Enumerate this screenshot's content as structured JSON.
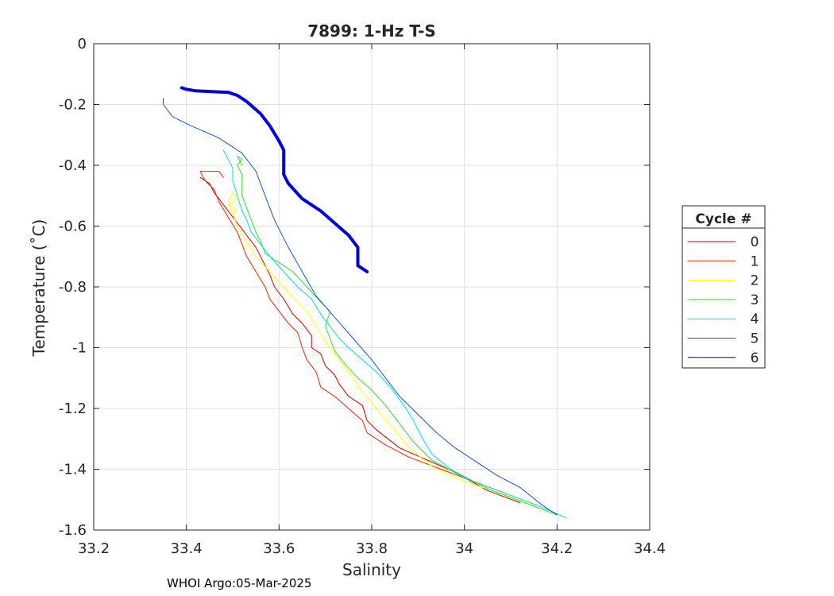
{
  "chart_data": {
    "type": "line",
    "title": "7899: 1-Hz T-S",
    "xlabel": "Salinity",
    "ylabel": "Temperature (˚C)",
    "xlim": [
      33.2,
      34.4
    ],
    "ylim": [
      -1.6,
      0
    ],
    "xticks": [
      "33.2",
      "33.4",
      "33.6",
      "33.8",
      "34",
      "34.2",
      "34.4"
    ],
    "yticks": [
      "0",
      "-0.2",
      "-0.4",
      "-0.6",
      "-0.8",
      "-1",
      "-1.2",
      "-1.4",
      "-1.6"
    ],
    "grid": true,
    "legend": {
      "title": "Cycle #",
      "placement": "outside-right"
    },
    "series": [
      {
        "name": "0",
        "color": "#cc0000",
        "points": [
          [
            34.12,
            -1.51
          ],
          [
            34.05,
            -1.47
          ],
          [
            33.98,
            -1.41
          ],
          [
            33.92,
            -1.37
          ],
          [
            33.86,
            -1.33
          ],
          [
            33.81,
            -1.27
          ],
          [
            33.79,
            -1.24
          ],
          [
            33.78,
            -1.19
          ],
          [
            33.75,
            -1.16
          ],
          [
            33.73,
            -1.12
          ],
          [
            33.72,
            -1.09
          ],
          [
            33.7,
            -1.06
          ],
          [
            33.69,
            -1.02
          ],
          [
            33.67,
            -1.0
          ],
          [
            33.67,
            -0.96
          ],
          [
            33.65,
            -0.92
          ],
          [
            33.63,
            -0.89
          ],
          [
            33.61,
            -0.84
          ],
          [
            33.59,
            -0.8
          ],
          [
            33.58,
            -0.76
          ],
          [
            33.57,
            -0.73
          ],
          [
            33.56,
            -0.7
          ],
          [
            33.55,
            -0.67
          ],
          [
            33.54,
            -0.65
          ],
          [
            33.53,
            -0.63
          ],
          [
            33.5,
            -0.57
          ],
          [
            33.48,
            -0.53
          ],
          [
            33.46,
            -0.49
          ],
          [
            33.45,
            -0.46
          ],
          [
            33.43,
            -0.44
          ]
        ]
      },
      {
        "name": "1",
        "color": "#ee2200",
        "points": [
          [
            34.09,
            -1.48
          ],
          [
            34.02,
            -1.44
          ],
          [
            33.95,
            -1.4
          ],
          [
            33.88,
            -1.36
          ],
          [
            33.83,
            -1.32
          ],
          [
            33.79,
            -1.28
          ],
          [
            33.78,
            -1.24
          ],
          [
            33.75,
            -1.2
          ],
          [
            33.72,
            -1.16
          ],
          [
            33.69,
            -1.13
          ],
          [
            33.68,
            -1.08
          ],
          [
            33.66,
            -1.04
          ],
          [
            33.65,
            -1.0
          ],
          [
            33.64,
            -0.95
          ],
          [
            33.62,
            -0.92
          ],
          [
            33.6,
            -0.88
          ],
          [
            33.58,
            -0.84
          ],
          [
            33.57,
            -0.8
          ],
          [
            33.55,
            -0.75
          ],
          [
            33.53,
            -0.7
          ],
          [
            33.52,
            -0.66
          ],
          [
            33.51,
            -0.62
          ],
          [
            33.49,
            -0.57
          ],
          [
            33.47,
            -0.52
          ],
          [
            33.46,
            -0.48
          ],
          [
            33.44,
            -0.45
          ],
          [
            33.43,
            -0.42
          ],
          [
            33.47,
            -0.42
          ],
          [
            33.48,
            -0.44
          ]
        ]
      },
      {
        "name": "2",
        "color": "#ffff00",
        "points": [
          [
            34.15,
            -1.52
          ],
          [
            34.08,
            -1.48
          ],
          [
            34.0,
            -1.44
          ],
          [
            33.93,
            -1.39
          ],
          [
            33.88,
            -1.33
          ],
          [
            33.85,
            -1.27
          ],
          [
            33.82,
            -1.22
          ],
          [
            33.8,
            -1.18
          ],
          [
            33.78,
            -1.15
          ],
          [
            33.76,
            -1.1
          ],
          [
            33.74,
            -1.06
          ],
          [
            33.72,
            -1.02
          ],
          [
            33.7,
            -0.98
          ],
          [
            33.68,
            -0.93
          ],
          [
            33.66,
            -0.88
          ],
          [
            33.64,
            -0.85
          ],
          [
            33.61,
            -0.8
          ],
          [
            33.58,
            -0.75
          ],
          [
            33.55,
            -0.7
          ],
          [
            33.53,
            -0.65
          ],
          [
            33.51,
            -0.6
          ],
          [
            33.5,
            -0.56
          ],
          [
            33.49,
            -0.52
          ],
          [
            33.5,
            -0.49
          ],
          [
            33.51,
            -0.51
          ],
          [
            33.49,
            -0.53
          ],
          [
            33.51,
            -0.55
          ]
        ]
      },
      {
        "name": "3",
        "color": "#33dd33",
        "points": [
          [
            34.2,
            -1.55
          ],
          [
            34.13,
            -1.51
          ],
          [
            34.06,
            -1.47
          ],
          [
            33.99,
            -1.42
          ],
          [
            33.93,
            -1.37
          ],
          [
            33.89,
            -1.31
          ],
          [
            33.86,
            -1.25
          ],
          [
            33.83,
            -1.19
          ],
          [
            33.8,
            -1.14
          ],
          [
            33.77,
            -1.1
          ],
          [
            33.74,
            -1.05
          ],
          [
            33.72,
            -1.01
          ],
          [
            33.71,
            -0.97
          ],
          [
            33.7,
            -0.93
          ],
          [
            33.71,
            -0.88
          ],
          [
            33.69,
            -0.85
          ],
          [
            33.66,
            -0.8
          ],
          [
            33.63,
            -0.75
          ],
          [
            33.6,
            -0.72
          ],
          [
            33.57,
            -0.69
          ],
          [
            33.56,
            -0.65
          ],
          [
            33.55,
            -0.62
          ],
          [
            33.54,
            -0.58
          ],
          [
            33.53,
            -0.54
          ],
          [
            33.52,
            -0.5
          ],
          [
            33.52,
            -0.46
          ],
          [
            33.52,
            -0.43
          ],
          [
            33.51,
            -0.4
          ],
          [
            33.52,
            -0.38
          ],
          [
            33.51,
            -0.37
          ],
          [
            33.52,
            -0.4
          ]
        ]
      },
      {
        "name": "4",
        "color": "#00e0d0",
        "points": [
          [
            34.22,
            -1.56
          ],
          [
            34.16,
            -1.52
          ],
          [
            34.09,
            -1.48
          ],
          [
            34.02,
            -1.44
          ],
          [
            33.97,
            -1.4
          ],
          [
            33.93,
            -1.35
          ],
          [
            33.91,
            -1.3
          ],
          [
            33.89,
            -1.24
          ],
          [
            33.87,
            -1.19
          ],
          [
            33.84,
            -1.13
          ],
          [
            33.81,
            -1.08
          ],
          [
            33.78,
            -1.04
          ],
          [
            33.75,
            -1.0
          ],
          [
            33.73,
            -0.97
          ],
          [
            33.71,
            -0.93
          ],
          [
            33.69,
            -0.89
          ],
          [
            33.67,
            -0.84
          ],
          [
            33.64,
            -0.8
          ],
          [
            33.61,
            -0.75
          ],
          [
            33.58,
            -0.7
          ],
          [
            33.56,
            -0.66
          ],
          [
            33.54,
            -0.62
          ],
          [
            33.53,
            -0.58
          ],
          [
            33.52,
            -0.55
          ],
          [
            33.51,
            -0.5
          ],
          [
            33.5,
            -0.45
          ],
          [
            33.5,
            -0.41
          ],
          [
            33.49,
            -0.38
          ],
          [
            33.48,
            -0.35
          ]
        ]
      },
      {
        "name": "5",
        "color": "#1155dd",
        "points": [
          [
            34.2,
            -1.55
          ],
          [
            34.17,
            -1.52
          ],
          [
            34.12,
            -1.46
          ],
          [
            34.07,
            -1.42
          ],
          [
            34.03,
            -1.38
          ],
          [
            33.98,
            -1.33
          ],
          [
            33.94,
            -1.28
          ],
          [
            33.9,
            -1.22
          ],
          [
            33.86,
            -1.16
          ],
          [
            33.83,
            -1.1
          ],
          [
            33.8,
            -1.04
          ],
          [
            33.76,
            -0.97
          ],
          [
            33.72,
            -0.9
          ],
          [
            33.68,
            -0.83
          ],
          [
            33.65,
            -0.75
          ],
          [
            33.62,
            -0.67
          ],
          [
            33.59,
            -0.58
          ],
          [
            33.57,
            -0.5
          ],
          [
            33.55,
            -0.42
          ],
          [
            33.52,
            -0.36
          ],
          [
            33.47,
            -0.31
          ],
          [
            33.41,
            -0.27
          ],
          [
            33.37,
            -0.24
          ],
          [
            33.35,
            -0.2
          ],
          [
            33.35,
            -0.18
          ]
        ]
      },
      {
        "name": "6",
        "color": "#0000dd",
        "points": [
          [
            33.79,
            -0.75
          ],
          [
            33.77,
            -0.73
          ],
          [
            33.77,
            -0.71
          ],
          [
            33.77,
            -0.67
          ],
          [
            33.75,
            -0.63
          ],
          [
            33.72,
            -0.59
          ],
          [
            33.69,
            -0.55
          ],
          [
            33.65,
            -0.51
          ],
          [
            33.62,
            -0.46
          ],
          [
            33.61,
            -0.43
          ],
          [
            33.61,
            -0.41
          ],
          [
            33.61,
            -0.38
          ],
          [
            33.61,
            -0.35
          ],
          [
            33.6,
            -0.32
          ],
          [
            33.58,
            -0.27
          ],
          [
            33.56,
            -0.23
          ],
          [
            33.53,
            -0.19
          ],
          [
            33.51,
            -0.17
          ],
          [
            33.49,
            -0.16
          ],
          [
            33.42,
            -0.155
          ],
          [
            33.4,
            -0.15
          ],
          [
            33.39,
            -0.145
          ]
        ]
      }
    ]
  },
  "footer": "WHOI Argo:05-Mar-2025"
}
